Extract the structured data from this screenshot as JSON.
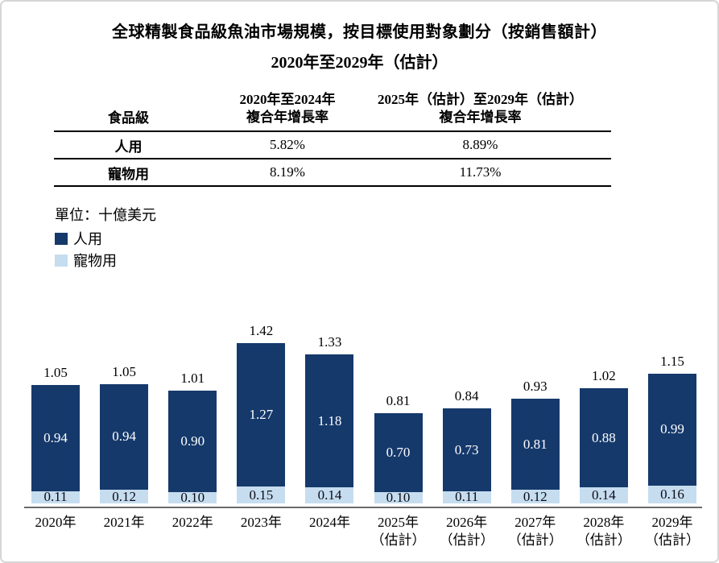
{
  "title": {
    "line1": "全球精製食品級魚油市場規模，按目標使用對象劃分（按銷售額計）",
    "line2": "2020年至2029年（估計）"
  },
  "table": {
    "col1_header": "食品級",
    "col2_header_line1": "2020年至2024年",
    "col2_header_line2": "複合年增長率",
    "col3_header_line1": "2025年（估計）至2029年（估計）",
    "col3_header_line2": "複合年增長率",
    "rows": [
      {
        "label": "人用",
        "cagr_2020_2024": "5.82%",
        "cagr_2025_2029": "8.89%"
      },
      {
        "label": "寵物用",
        "cagr_2020_2024": "8.19%",
        "cagr_2025_2029": "11.73%"
      }
    ]
  },
  "legend": {
    "unit": "單位：十億美元",
    "items": [
      {
        "label": "人用",
        "color": "#15396b"
      },
      {
        "label": "寵物用",
        "color": "#c6ddf0"
      }
    ]
  },
  "chart_data": {
    "type": "bar",
    "stacked": true,
    "title": "全球精製食品級魚油市場規模，按目標使用對象劃分（按銷售額計）2020年至2029年（估計）",
    "ylabel": "十億美元",
    "unit": "十億美元",
    "legend_position": "top-left",
    "grid": false,
    "categories": [
      {
        "year": "2020年",
        "note": ""
      },
      {
        "year": "2021年",
        "note": ""
      },
      {
        "year": "2022年",
        "note": ""
      },
      {
        "year": "2023年",
        "note": ""
      },
      {
        "year": "2024年",
        "note": ""
      },
      {
        "year": "2025年",
        "note": "（估計）"
      },
      {
        "year": "2026年",
        "note": "（估計）"
      },
      {
        "year": "2027年",
        "note": "（估計）"
      },
      {
        "year": "2028年",
        "note": "（估計）"
      },
      {
        "year": "2029年",
        "note": "（估計）"
      }
    ],
    "series": [
      {
        "name": "人用",
        "color": "#15396b",
        "values": [
          0.94,
          0.94,
          0.9,
          1.27,
          1.18,
          0.7,
          0.73,
          0.81,
          0.88,
          0.99
        ]
      },
      {
        "name": "寵物用",
        "color": "#c6ddf0",
        "values": [
          0.11,
          0.12,
          0.1,
          0.15,
          0.14,
          0.1,
          0.11,
          0.12,
          0.14,
          0.16
        ]
      }
    ],
    "totals": [
      1.05,
      1.05,
      1.01,
      1.42,
      1.33,
      0.81,
      0.84,
      0.93,
      1.02,
      1.15
    ],
    "ylim": [
      0,
      1.5
    ]
  }
}
